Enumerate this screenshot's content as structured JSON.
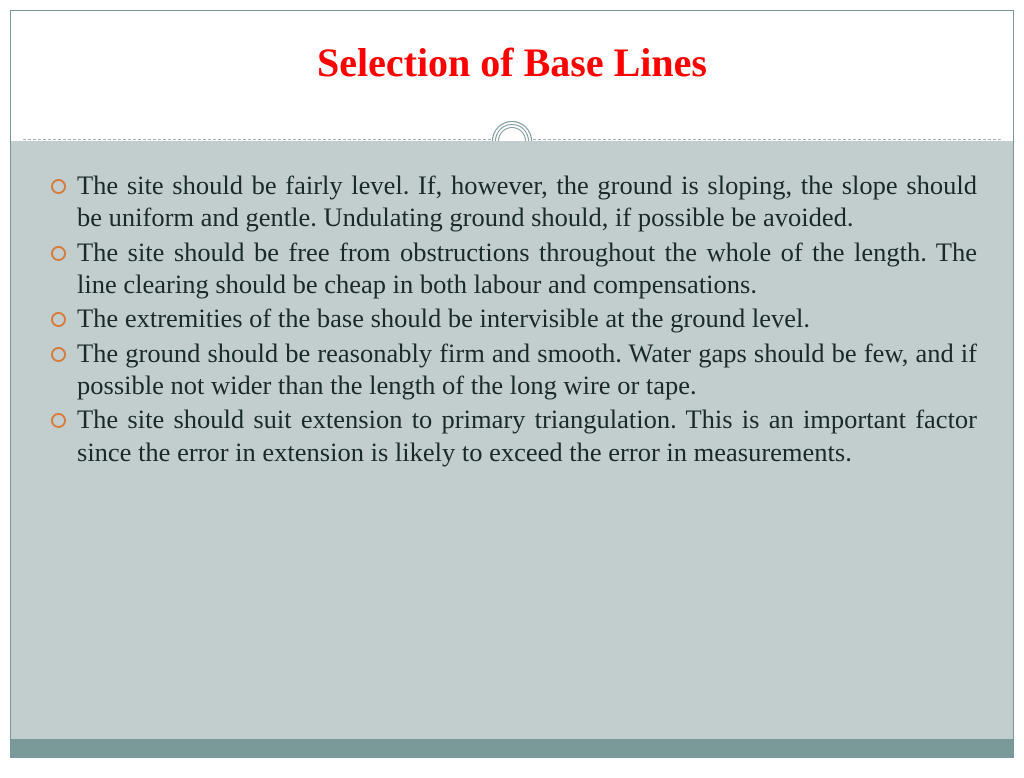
{
  "slide": {
    "title": "Selection of Base Lines",
    "title_color": "#ff0000",
    "title_fontsize": 40,
    "bullet_color": "#d97a3a",
    "body_bg": "#c2cece",
    "footer_bg": "#7a9a9a",
    "border_color": "#7a9a9a",
    "text_color": "#1a2a2a",
    "body_fontsize": 26.5,
    "bullets": [
      "The site should be fairly level. If, however, the ground is sloping, the slope should be uniform and gentle. Undulating ground should, if possible be avoided.",
      "The site should be free from obstructions throughout the whole of the length. The line clearing should be cheap in both labour and compensations.",
      "The extremities of the base should be intervisible at the ground level.",
      "The ground should be reasonably firm and smooth. Water gaps should be few, and if possible not wider than the length of the long wire or tape.",
      "The site should suit extension to primary triangulation. This is an important factor since the error in extension is likely to exceed the error in measurements."
    ]
  }
}
